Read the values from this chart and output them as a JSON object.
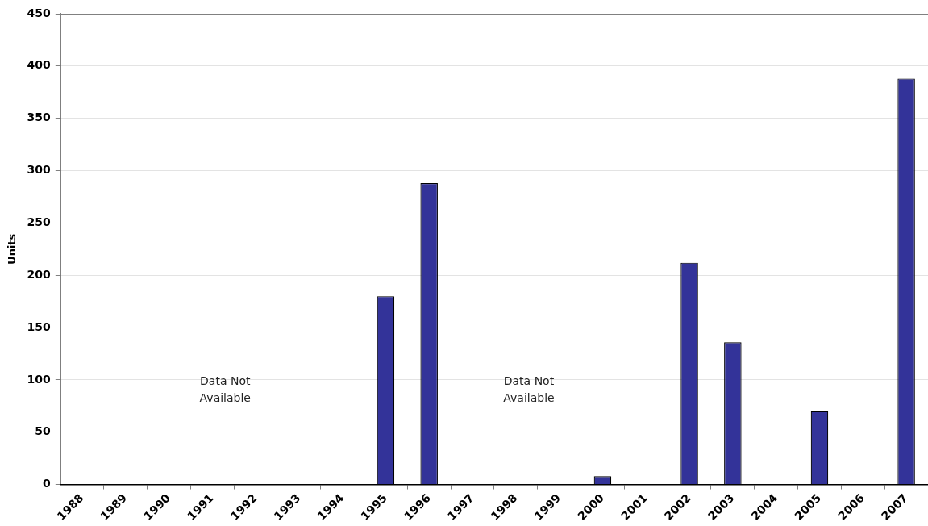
{
  "chart_data": {
    "type": "bar",
    "ylabel": "Units",
    "categories": [
      "1988",
      "1989",
      "1990",
      "1991",
      "1992",
      "1993",
      "1994",
      "1995",
      "1996",
      "1997",
      "1998",
      "1999",
      "2000",
      "2001",
      "2002",
      "2003",
      "2004",
      "2005",
      "2006",
      "2007"
    ],
    "values": [
      null,
      null,
      null,
      null,
      null,
      null,
      null,
      180,
      288,
      null,
      null,
      null,
      8,
      null,
      212,
      136,
      null,
      70,
      null,
      388
    ],
    "color": "#333399",
    "ylim": [
      0,
      450
    ],
    "yticks": [
      0,
      50,
      100,
      150,
      200,
      250,
      300,
      350,
      400,
      450
    ],
    "grid": "y",
    "legend": false,
    "annotations": [
      "Data Not\nAvailable",
      "Data Not\nAvailable"
    ]
  }
}
